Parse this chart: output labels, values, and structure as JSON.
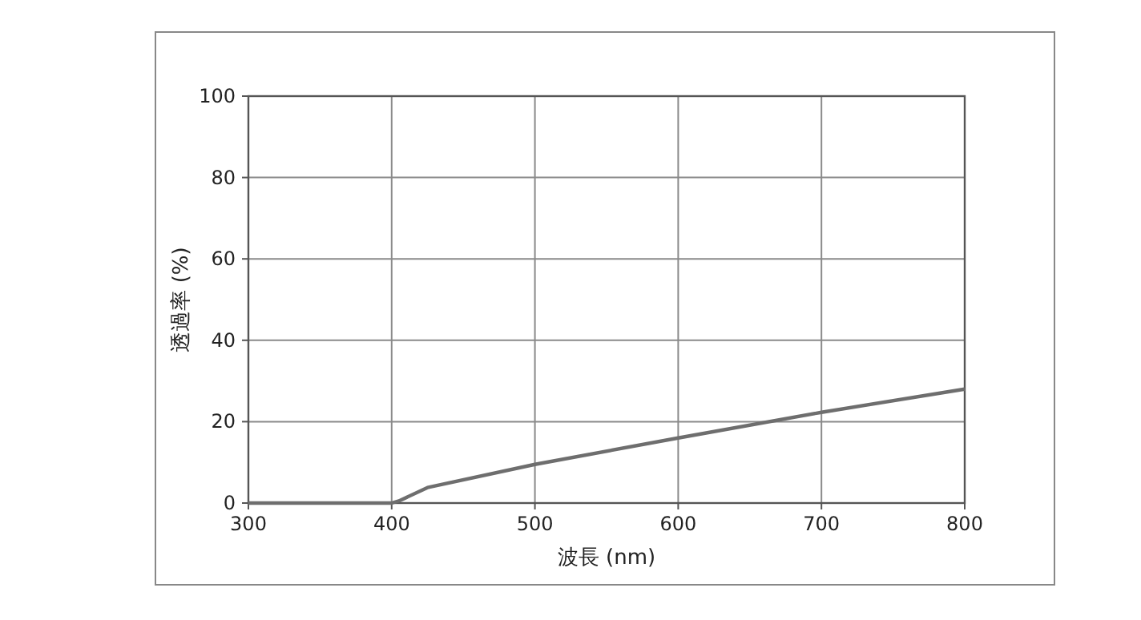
{
  "chart_data": {
    "type": "line",
    "xlabel": "波長 (nm)",
    "ylabel": "透過率 (%)",
    "x": [
      300,
      400,
      405,
      425,
      500,
      600,
      700,
      800
    ],
    "series": [
      {
        "color": "#6e6e6e",
        "values": [
          0,
          0,
          0.5,
          3.8,
          9.5,
          16,
          22.3,
          28
        ]
      }
    ],
    "xlim": [
      300,
      800
    ],
    "xticks": [
      300,
      400,
      500,
      600,
      700,
      800
    ],
    "ylim": [
      0,
      100
    ],
    "yticks": [
      0,
      20,
      40,
      60,
      80,
      100
    ],
    "grid": true,
    "marker": "none",
    "line_style": "solid"
  }
}
